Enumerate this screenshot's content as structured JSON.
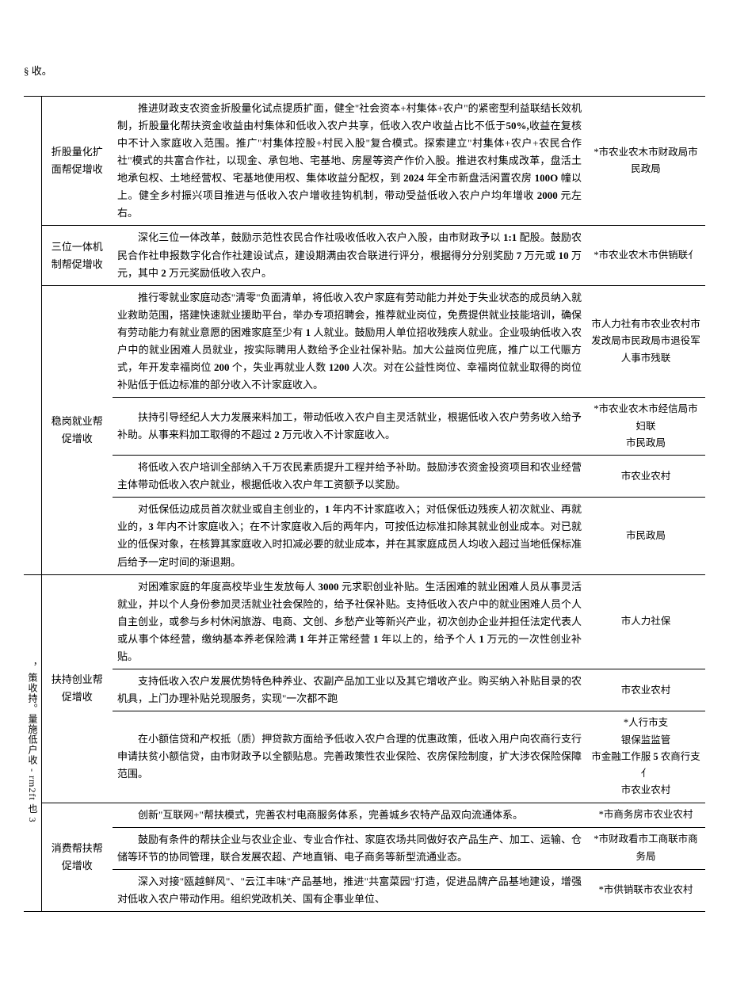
{
  "topNote": "§ 收。",
  "sideLabelTop": "",
  "sideLabelMid": "，策收持。量施低户收 - rm2ft 也 3",
  "rows": [
    {
      "col1": "折股量化扩面帮促增收",
      "col2": "推进财政支农资金折股量化试点提质扩面，健全\"社会资本+村集体+农户\"的紧密型利益联结长效机制，折股量化帮扶资金收益由村集体和低收入农户共享，低收入农户收益占比不低于<b>50%,</b>收益在复核中不计入家庭收入范围。推广\"村集体控股+村民入股\"复合模式。探索建立\"村集体+农户+农民合作社\"模式的共富合作社，以现金、承包地、宅基地、房屋等资产作价入股。推进农村集成改革，盘活土地承包权、土地经营权、宅基地使用权、集体收益分配权，到 <b>2024</b> 年全市新盘活闲置农房 <b>100O</b> 幢以上。健全乡村振兴项目推进与低收入农户增收挂钩机制，带动受益低收入农户户均年增收 <b>2000</b> 元左右。",
      "col3": "*市农业农木市财政局市民政局"
    },
    {
      "col1": "三位一体机制帮促增收",
      "col2": "深化三位一体改革，鼓励示范性农民合作社吸收低收入农户入股，由市财政予以 <b>1:1</b> 配股。鼓励农民合作社申报数字化合作社建设试点，建设期满由农合联进行评分，根据得分分别奖励 <b>7</b> 万元或 <b>10</b> 万元，其中 <b>2</b> 万元奖励低收入农户。",
      "col3": "*市农业农木市供销联亻"
    },
    {
      "col1": "稳岗就业帮促增收",
      "subrows": [
        {
          "col2": "推行零就业家庭动态\"清零\"负面清单，将低收入农户家庭有劳动能力并处于失业状态的成员纳入就业救助范围，搭建快速就业援助平台，举办专项招聘会，推荐就业岗位，免费提供就业技能培训，确保有劳动能力有就业意愿的困难家庭至少有 <b>1</b> 人就业。鼓励用人单位招收残疾人就业。企业吸纳低收入农户中的就业困难人员就业，按实际聘用人数给予企业社保补贴。加大公益岗位兜底，推广以工代赈方式，年开发幸福岗位 <b>200</b> 个，失业再就业人数 <b>1200</b> 人次。对在公益性岗位、幸福岗位就业取得的岗位补贴低于低边标准的部分收入不计家庭收入。",
          "col3": "市人力社有市农业农村市发改局市民政局市退役军人事市残联"
        },
        {
          "col2": "扶持引导经纪人大力发展来料加工，带动低收入农户自主灵活就业，根据低收入农户劳务收入给予补助。从事来料加工取得的不超过 <b>2</b> 万元收入不计家庭收入。",
          "col3": "*市农业农木市经信局市妇联\n市民政局"
        },
        {
          "col2": "将低收入农户培训全部纳入千万农民素质提升工程并给予补助。鼓励涉农资金投资项目和农业经营主体带动低收入农户就业，根据低收入农户年工资额予以奖励。",
          "col3": "市农业农村"
        },
        {
          "col2": "对低保低边成员首次就业或自主创业的，<b>1</b> 年内不计家庭收入；对低保低边残疾人初次就业、再就业的，<b>3</b> 年内不计家庭收入；在不计家庭收入后的两年内，可按低边标准扣除其就业创业成本。对已就业的低保对象，在核算其家庭收入时扣减必要的就业成本，并在其家庭成员人均收入超过当地低保标准后给予一定时间的渐退期。",
          "col3": "市民政局"
        }
      ]
    },
    {
      "col1": "扶持创业帮促增收",
      "subrows": [
        {
          "col2": "对困难家庭的年度高校毕业生发放每人 <b>3000</b> 元求职创业补贴。生活困难的就业困难人员从事灵活就业，并以个人身份参加灵活就业社会保险的，给予社保补贴。支持低收入农户中的就业困难人员个人自主创业，或参与乡村休闲旅游、电商、文创、乡愁产业等新兴产业，初次创办企业并担任法定代表人或从事个体经营，缴纳基本养老保险满 <b>1</b> 年并正常经营 <b>1</b> 年以上的，给予个人 <b>1</b> 万元的一次性创业补贴。",
          "col3": "市人力社保"
        },
        {
          "col2": "支持低收入农户发展优势特色种养业、农副产品加工业以及其它增收产业。购买纳入补贴目录的农机具，上门办理补贴兑现服务，实现\"一次都不跑",
          "col3": "市农业农村"
        },
        {
          "col2": "在小额信贷和产权抵（质）押贷款方面给予低收入农户合理的优惠政策，低收入用户向农商行支行申请扶贫小额信贷，由市财政予以全额贴息。完善政策性农业保险、农房保险制度，扩大涉农保险保障范围。",
          "col3": "*人行市支\n银保监监管\n市金融工作服 <b>5</b> 农商行支亻\n市农业农村"
        }
      ]
    },
    {
      "col1": "消费帮扶帮促增收",
      "subrows": [
        {
          "col2": "创新\"互联网+\"帮扶模式，完善农村电商服务体系，完善城乡农特产品双向流通体系。",
          "col3": "*市商务房市农业农村"
        },
        {
          "col2": "鼓励有条件的帮扶企业与农业企业、专业合作社、家庭农场共同做好农产品生产、加工、运输、仓储等环节的协同管理，联合发展农超、产地直销、电子商务等新型流通业态。",
          "col3": "*市财政看市工商联市商务局"
        },
        {
          "col2": "深入对接\"瓯越鲜风\"、\"云江丰味\"产品基地，推进\"共富菜园\"打造，促进品牌产品基地建设，增强对低收入农户带动作用。组织党政机关、国有企事业单位、",
          "col3": "*市供销联市农业农村"
        }
      ]
    }
  ]
}
